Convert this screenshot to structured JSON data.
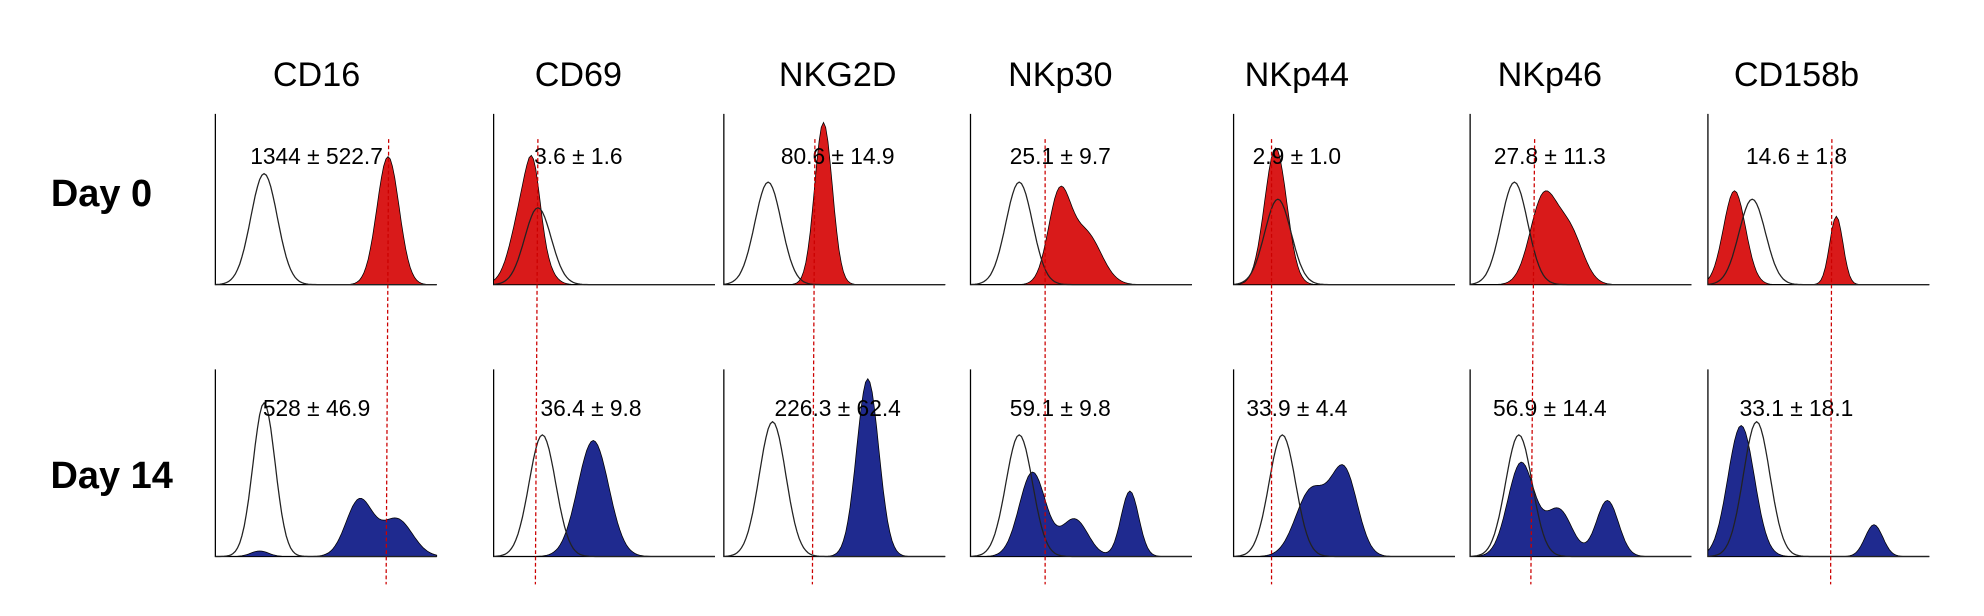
{
  "columns": [
    "CD16",
    "CD69",
    "NKG2D",
    "NKp30",
    "NKp44",
    "NKp46",
    "CD158b"
  ],
  "rows": [
    {
      "label": "Day 0",
      "values": [
        "1344 ± 522.7",
        "3.6 ± 1.6",
        "80.6 ± 14.9",
        "25.1 ± 9.7",
        "2.9 ± 1.0",
        "27.8 ± 11.3",
        "14.6 ± 1.8"
      ]
    },
    {
      "label": "Day 14",
      "values": [
        "528 ± 46.9",
        "36.4 ± 9.8",
        "226.3 ± 62.4",
        "59.1 ± 9.8",
        "33.9 ± 4.4",
        "56.9 ± 14.4",
        "33.1 ± 18.1"
      ]
    }
  ]
}
